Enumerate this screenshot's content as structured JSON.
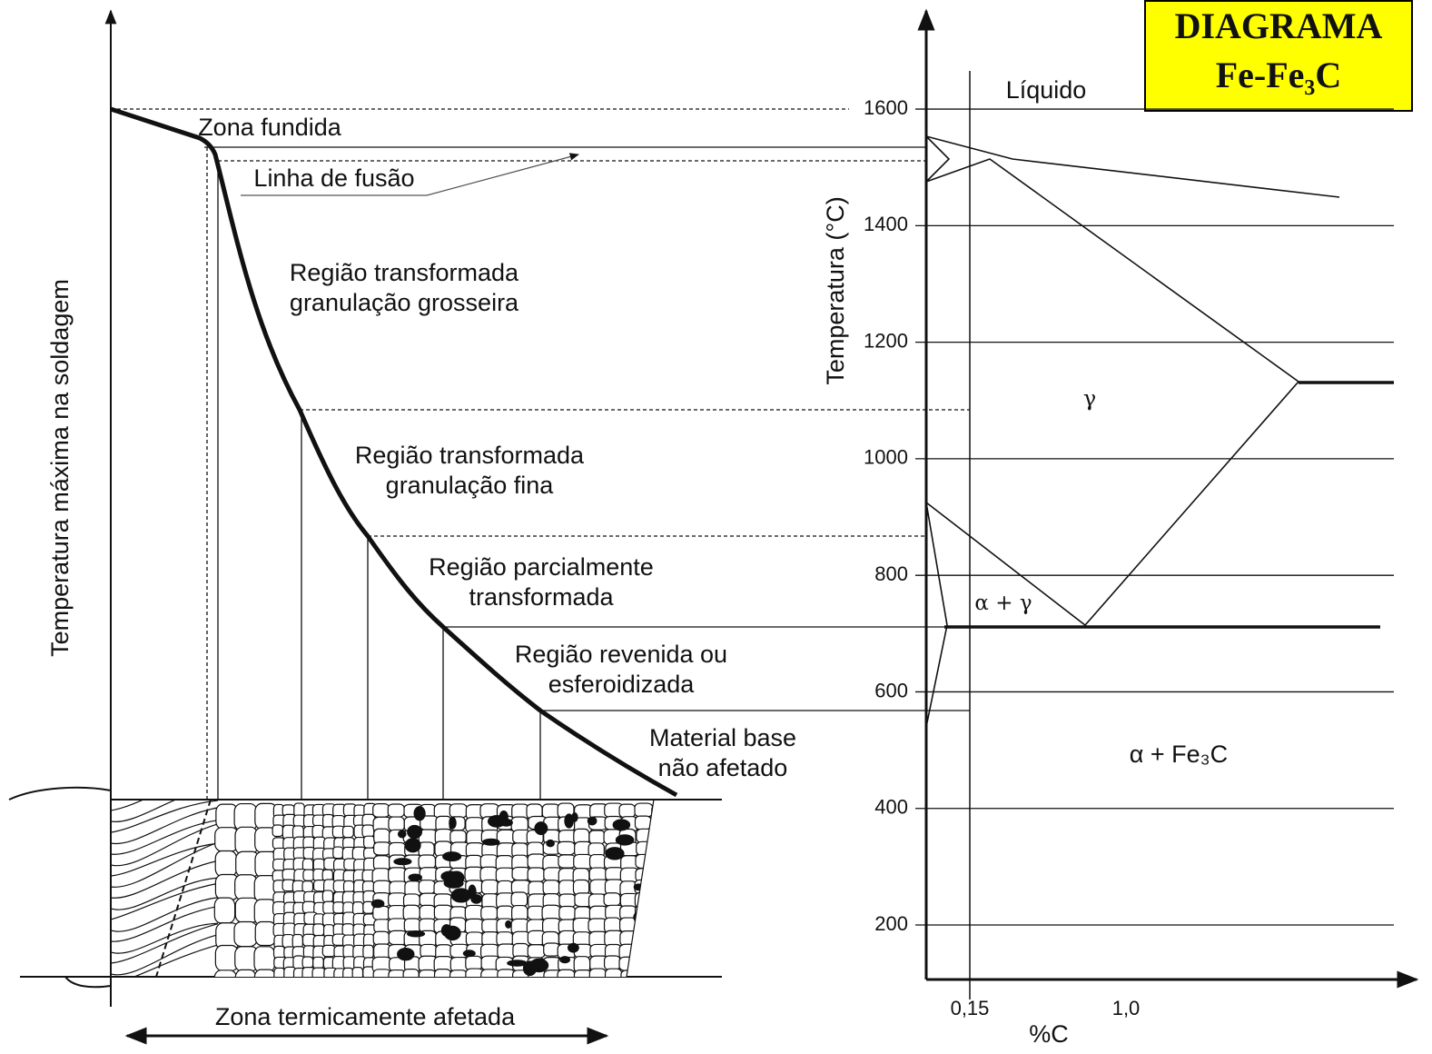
{
  "header": {
    "lines": [
      "DIAGRAMA",
      "Fe-Fe₃C"
    ]
  },
  "left_diagram": {
    "y_axis_label": "Temperatura máxima na soldagem",
    "x_axis_label": "Zona termicamente afetada",
    "zones": [
      {
        "lines": [
          "Zona fundida"
        ]
      },
      {
        "lines": [
          "Linha de fusão"
        ]
      },
      {
        "lines": [
          "Região transformada",
          "granulação grosseira"
        ]
      },
      {
        "lines": [
          "Região transformada",
          "granulação fina"
        ]
      },
      {
        "lines": [
          "Região parcialmente",
          "transformada"
        ]
      },
      {
        "lines": [
          "Região revenida ou",
          "esferoidizada"
        ]
      },
      {
        "lines": [
          "Material base",
          "não afetado"
        ]
      }
    ]
  },
  "right_diagram": {
    "y_axis_label": "Temperatura (°C)",
    "x_axis_label": "%C",
    "yticks": [
      200,
      400,
      600,
      800,
      1000,
      1200,
      1400,
      1600
    ],
    "xticks": [
      "0,15",
      "1,0"
    ],
    "regions": [
      "Líquido",
      "γ",
      "α + γ",
      "α + Fe₃C"
    ]
  }
}
